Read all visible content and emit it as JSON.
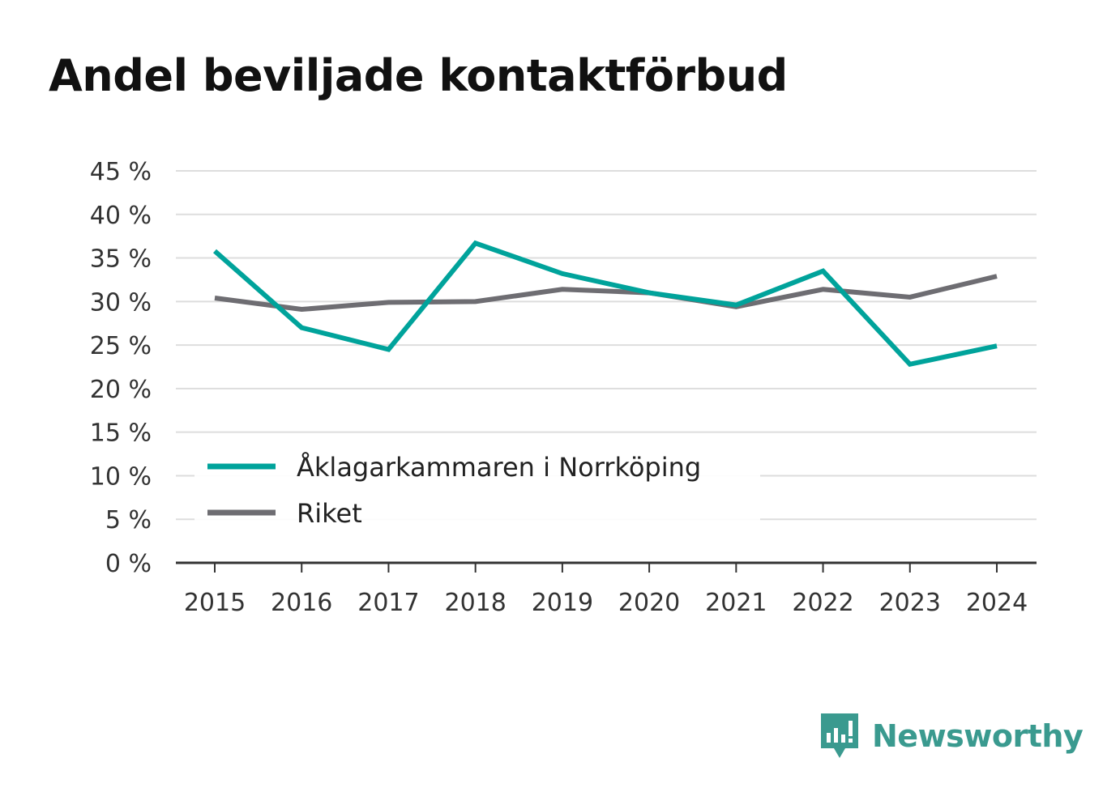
{
  "title": "Andel beviljade kontaktförbud",
  "brand": "Newsworthy",
  "colors": {
    "accent": "#00a39b",
    "national": "#6e6d72",
    "grid": "#dddddd",
    "axis": "#333333",
    "brand": "#3a9a8f"
  },
  "chart_data": {
    "type": "line",
    "title": "Andel beviljade kontaktförbud",
    "xlabel": "",
    "ylabel": "",
    "categories": [
      "2015",
      "2016",
      "2017",
      "2018",
      "2019",
      "2020",
      "2021",
      "2022",
      "2023",
      "2024"
    ],
    "yticks": [
      "0 %",
      "5 %",
      "10 %",
      "15 %",
      "20 %",
      "25 %",
      "30 %",
      "35 %",
      "40 %",
      "45 %"
    ],
    "ylim": [
      0,
      45
    ],
    "grid": true,
    "legend_position": "bottom-left",
    "series": [
      {
        "name": "Åklagarkammaren i Norrköping",
        "color": "#00a39b",
        "values": [
          35.8,
          27.0,
          24.5,
          36.7,
          33.2,
          31.0,
          29.6,
          33.5,
          22.8,
          24.9
        ]
      },
      {
        "name": "Riket",
        "color": "#6e6d72",
        "values": [
          30.4,
          29.1,
          29.9,
          30.0,
          31.4,
          31.0,
          29.4,
          31.4,
          30.5,
          32.9
        ]
      }
    ]
  }
}
